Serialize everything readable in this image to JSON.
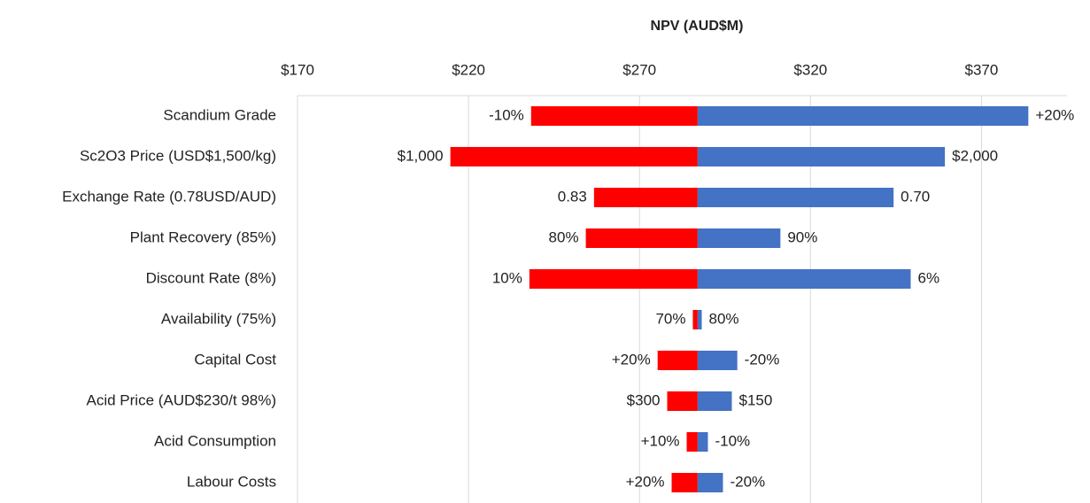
{
  "chart_data": {
    "type": "tornado",
    "title": "NPV (AUD$M)",
    "categories": [
      "Scandium Grade",
      "Sc2O3 Price (USD$1,500/kg)",
      "Exchange Rate (0.78USD/AUD)",
      "Plant Recovery (85%)",
      "Discount Rate (8%)",
      "Availability (75%)",
      "Capital Cost",
      "Acid Price (AUD$230/t 98%)",
      "Acid Consumption",
      "Labour Costs"
    ],
    "base": 287,
    "series": [
      {
        "color": "#ff0000",
        "values": [
          238.3,
          214.7,
          256.7,
          254.3,
          237.8,
          285.6,
          275.3,
          278.1,
          283.8,
          279.4
        ],
        "labels": [
          "-10%",
          "$1,000",
          "0.83",
          "80%",
          "10%",
          "70%",
          "+20%",
          "$300",
          "+10%",
          "+20%"
        ]
      },
      {
        "color": "#4472c4",
        "values": [
          383.7,
          359.3,
          344.3,
          311.2,
          349.3,
          288.2,
          298.6,
          297,
          290,
          294.4
        ],
        "labels": [
          "+20%",
          "$2,000",
          "0.70",
          "90%",
          "6%",
          "80%",
          "-20%",
          "$150",
          "-10%",
          "-20%"
        ]
      }
    ],
    "xlim": [
      170,
      395
    ],
    "xticks": [
      {
        "value": 170,
        "label": "$170"
      },
      {
        "value": 220,
        "label": "$220"
      },
      {
        "value": 270,
        "label": "$270"
      },
      {
        "value": 320,
        "label": "$320"
      },
      {
        "value": 370,
        "label": "$370"
      }
    ],
    "grid": true
  }
}
